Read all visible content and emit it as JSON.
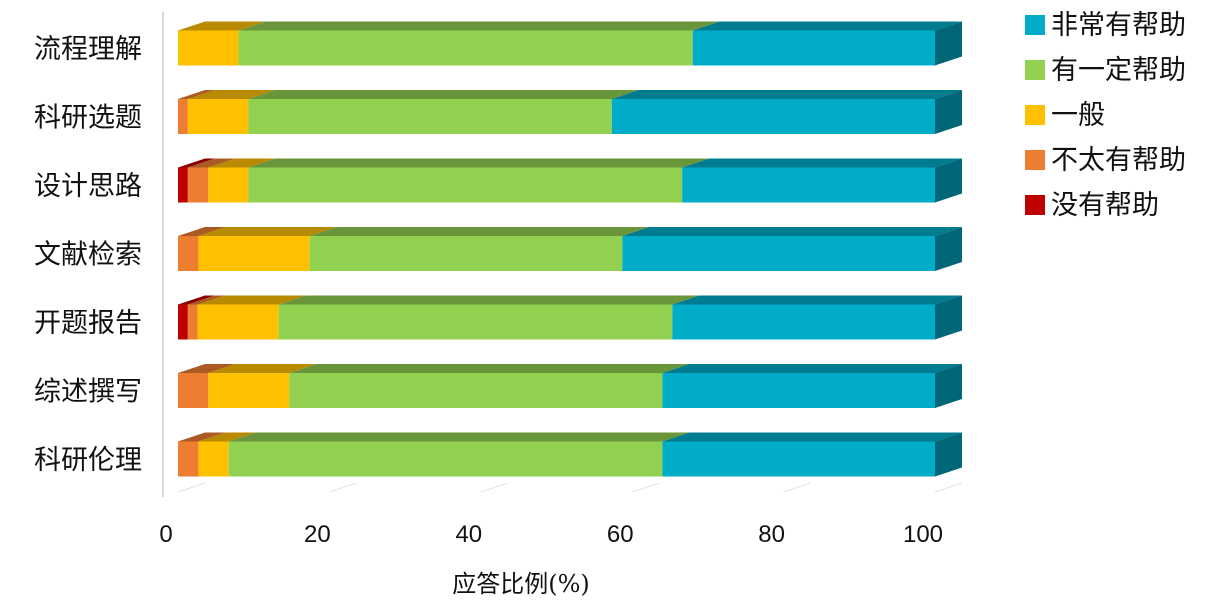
{
  "chart_data": {
    "type": "bar",
    "orientation": "horizontal",
    "stacked": true,
    "style": "3d",
    "categories": [
      "流程理解",
      "科研选题",
      "设计思路",
      "文献检索",
      "开题报告",
      "综述撰写",
      "科研伦理"
    ],
    "series": [
      {
        "name": "没有帮助",
        "color": "#C00000",
        "values": [
          0,
          0,
          1.3,
          0,
          1.3,
          0,
          0
        ]
      },
      {
        "name": "不太有帮助",
        "color": "#ED7D31",
        "values": [
          0,
          1.3,
          2.7,
          2.7,
          1.3,
          4.0,
          2.7
        ]
      },
      {
        "name": "一般",
        "color": "#FFC000",
        "values": [
          8.0,
          8.0,
          5.3,
          14.7,
          10.7,
          10.7,
          4.0
        ]
      },
      {
        "name": "有一定帮助",
        "color": "#92D050",
        "values": [
          60.0,
          48.0,
          57.3,
          41.3,
          52.0,
          49.3,
          57.3
        ]
      },
      {
        "name": "非常有帮助",
        "color": "#00ACC8",
        "values": [
          32.0,
          42.7,
          33.4,
          41.3,
          34.7,
          36.0,
          36.0
        ]
      }
    ],
    "xlabel": "应答比例(%)",
    "ylabel": "",
    "xlim": [
      0,
      100
    ],
    "xticks": [
      "0",
      "20",
      "40",
      "60",
      "80",
      "100"
    ],
    "legend_position": "top-right",
    "legend_order": [
      "非常有帮助",
      "有一定帮助",
      "一般",
      "不太有帮助",
      "没有帮助"
    ],
    "grid": true
  }
}
